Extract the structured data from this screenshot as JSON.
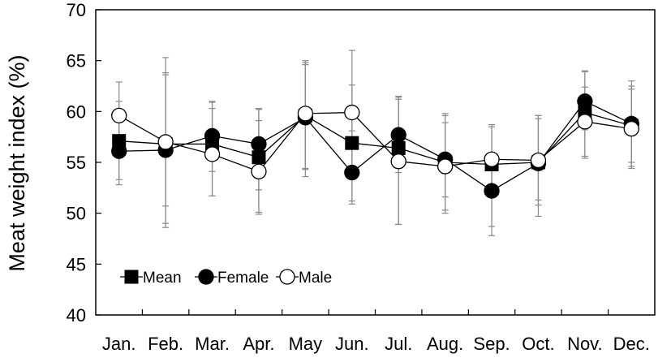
{
  "chart_data": {
    "type": "line",
    "title": "",
    "xlabel": "",
    "ylabel": "Meat weight index (%)",
    "ylim": [
      40,
      70
    ],
    "yticks": [
      40,
      45,
      50,
      55,
      60,
      65,
      70
    ],
    "categories": [
      "Jan.",
      "Feb.",
      "Mar.",
      "Apr.",
      "May",
      "Jun.",
      "Jul.",
      "Aug.",
      "Sep.",
      "Oct.",
      "Nov.",
      "Dec."
    ],
    "grid": false,
    "legend_position": "bottom-left",
    "series": [
      {
        "name": "Mean",
        "marker": "square",
        "color": "#000000",
        "fill": "#000000",
        "values": [
          57.1,
          56.8,
          56.8,
          55.5,
          59.6,
          56.9,
          56.4,
          55.0,
          54.8,
          55.0,
          59.9,
          58.6
        ],
        "error_low": [
          52.8,
          48.6,
          51.7,
          49.9,
          53.6,
          51.2,
          48.9,
          50.0,
          47.8,
          49.7,
          55.4,
          54.4
        ],
        "error_high": [
          61.0,
          65.3,
          60.9,
          60.3,
          65.0,
          62.6,
          61.4,
          59.8,
          58.7,
          59.6,
          63.9,
          63.0
        ]
      },
      {
        "name": "Female",
        "marker": "circle",
        "color": "#000000",
        "fill": "#000000",
        "values": [
          56.1,
          56.2,
          57.6,
          56.8,
          59.4,
          54.0,
          57.7,
          55.3,
          52.2,
          54.9,
          61.0,
          58.8
        ],
        "error_low": [
          53.3,
          50.7,
          54.1,
          52.3,
          54.4,
          50.9,
          54.0,
          51.6,
          48.7,
          51.3,
          58.2,
          55.0
        ],
        "error_high": [
          59.2,
          63.6,
          61.0,
          60.2,
          64.8,
          58.1,
          61.5,
          59.6,
          55.6,
          59.3,
          64.0,
          62.5
        ]
      },
      {
        "name": "Male",
        "marker": "circle-open",
        "color": "#000000",
        "fill": "#ffffff",
        "values": [
          59.6,
          57.0,
          55.8,
          54.1,
          59.8,
          59.9,
          55.1,
          54.6,
          55.3,
          55.2,
          59.0,
          58.3
        ],
        "error_low": [
          56.8,
          49.0,
          51.7,
          50.1,
          54.3,
          53.7,
          48.9,
          50.3,
          51.7,
          50.8,
          55.6,
          54.6
        ],
        "error_high": [
          62.9,
          63.8,
          60.3,
          59.1,
          64.6,
          66.0,
          61.2,
          58.9,
          58.5,
          59.6,
          62.4,
          62.2
        ]
      }
    ]
  }
}
